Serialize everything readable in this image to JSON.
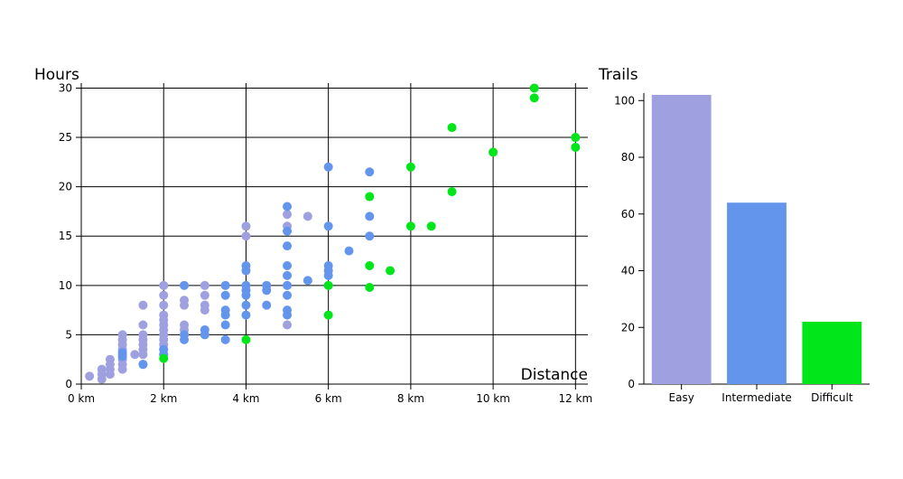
{
  "chart_data": [
    {
      "type": "scatter",
      "ylabel": "Hours",
      "xlabel": "Distance",
      "x_unit": "km",
      "xlim": [
        0,
        12.3
      ],
      "ylim": [
        0,
        30.5
      ],
      "x_ticks": [
        0,
        2,
        4,
        6,
        8,
        10,
        12
      ],
      "y_ticks": [
        0,
        5,
        10,
        15,
        20,
        25,
        30
      ],
      "grid": true,
      "series": [
        {
          "color": "#9fa0e0",
          "points": [
            [
              0.2,
              0.8
            ],
            [
              0.5,
              0.5
            ],
            [
              0.5,
              1.0
            ],
            [
              0.5,
              1.5
            ],
            [
              0.7,
              1.0
            ],
            [
              0.7,
              1.5
            ],
            [
              0.7,
              2.0
            ],
            [
              0.7,
              2.5
            ],
            [
              1.0,
              1.5
            ],
            [
              1.0,
              2.0
            ],
            [
              1.0,
              2.5
            ],
            [
              1.0,
              3.0
            ],
            [
              1.0,
              3.5
            ],
            [
              1.0,
              4.0
            ],
            [
              1.0,
              4.5
            ],
            [
              1.0,
              5.0
            ],
            [
              1.3,
              3.0
            ],
            [
              1.5,
              2.0
            ],
            [
              1.5,
              3.0
            ],
            [
              1.5,
              3.5
            ],
            [
              1.5,
              4.0
            ],
            [
              1.5,
              4.5
            ],
            [
              1.5,
              5.0
            ],
            [
              1.5,
              6.0
            ],
            [
              1.5,
              8.0
            ],
            [
              2.0,
              3.0
            ],
            [
              2.0,
              3.5
            ],
            [
              2.0,
              4.0
            ],
            [
              2.0,
              4.5
            ],
            [
              2.0,
              5.0
            ],
            [
              2.0,
              5.5
            ],
            [
              2.0,
              6.0
            ],
            [
              2.0,
              6.5
            ],
            [
              2.0,
              7.0
            ],
            [
              2.0,
              8.0
            ],
            [
              2.0,
              9.0
            ],
            [
              2.0,
              10.0
            ],
            [
              2.5,
              5.5
            ],
            [
              2.5,
              6.0
            ],
            [
              2.5,
              8.0
            ],
            [
              2.5,
              8.5
            ],
            [
              3.0,
              7.5
            ],
            [
              3.0,
              8.0
            ],
            [
              3.0,
              9.0
            ],
            [
              3.0,
              10.0
            ],
            [
              4.0,
              15.0
            ],
            [
              4.0,
              16.0
            ],
            [
              5.0,
              6.0
            ],
            [
              5.0,
              16.0
            ],
            [
              5.0,
              17.2
            ],
            [
              5.5,
              17.0
            ]
          ]
        },
        {
          "color": "#6495ed",
          "points": [
            [
              1.0,
              2.8
            ],
            [
              1.0,
              3.2
            ],
            [
              1.5,
              2.0
            ],
            [
              2.0,
              3.0
            ],
            [
              2.0,
              3.5
            ],
            [
              2.5,
              4.5
            ],
            [
              2.5,
              5.0
            ],
            [
              2.5,
              10.0
            ],
            [
              3.0,
              5.0
            ],
            [
              3.0,
              5.5
            ],
            [
              3.5,
              4.5
            ],
            [
              3.5,
              6.0
            ],
            [
              3.5,
              7.0
            ],
            [
              3.5,
              7.5
            ],
            [
              3.5,
              9.0
            ],
            [
              3.5,
              10.0
            ],
            [
              4.0,
              7.0
            ],
            [
              4.0,
              8.0
            ],
            [
              4.0,
              9.0
            ],
            [
              4.0,
              9.5
            ],
            [
              4.0,
              10.0
            ],
            [
              4.0,
              11.5
            ],
            [
              4.0,
              12.0
            ],
            [
              4.5,
              8.0
            ],
            [
              4.5,
              9.5
            ],
            [
              4.5,
              10.0
            ],
            [
              5.0,
              7.0
            ],
            [
              5.0,
              7.5
            ],
            [
              5.0,
              9.0
            ],
            [
              5.0,
              10.0
            ],
            [
              5.0,
              11.0
            ],
            [
              5.0,
              12.0
            ],
            [
              5.0,
              14.0
            ],
            [
              5.0,
              15.5
            ],
            [
              5.0,
              18.0
            ],
            [
              5.5,
              10.5
            ],
            [
              6.0,
              11.0
            ],
            [
              6.0,
              11.5
            ],
            [
              6.0,
              12.0
            ],
            [
              6.0,
              16.0
            ],
            [
              6.0,
              22.0
            ],
            [
              6.5,
              13.5
            ],
            [
              7.0,
              15.0
            ],
            [
              7.0,
              17.0
            ],
            [
              7.0,
              21.5
            ]
          ]
        },
        {
          "color": "#00e61a",
          "points": [
            [
              2.0,
              2.6
            ],
            [
              4.0,
              4.5
            ],
            [
              6.0,
              7.0
            ],
            [
              6.0,
              10.0
            ],
            [
              7.0,
              9.8
            ],
            [
              7.0,
              12.0
            ],
            [
              7.0,
              19.0
            ],
            [
              7.5,
              11.5
            ],
            [
              8.0,
              16.0
            ],
            [
              8.0,
              22.0
            ],
            [
              8.5,
              16.0
            ],
            [
              9.0,
              19.5
            ],
            [
              9.0,
              26.0
            ],
            [
              10.0,
              23.5
            ],
            [
              11.0,
              29.0
            ],
            [
              11.0,
              30.0
            ],
            [
              12.0,
              24.0
            ],
            [
              12.0,
              25.0
            ]
          ]
        }
      ]
    },
    {
      "type": "bar",
      "ylabel": "Trails",
      "categories": [
        "Easy",
        "Intermediate",
        "Difficult"
      ],
      "values": [
        102,
        64,
        22
      ],
      "colors": [
        "#9fa0e0",
        "#6495ed",
        "#00e61a"
      ],
      "ylim": [
        0,
        102
      ],
      "y_ticks": [
        0,
        20,
        40,
        60,
        80,
        100
      ],
      "grid": false
    }
  ]
}
